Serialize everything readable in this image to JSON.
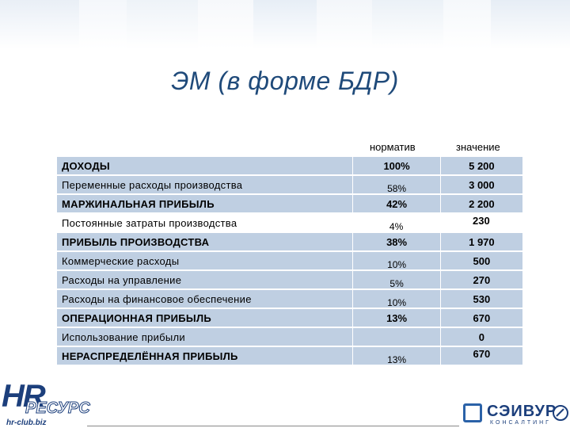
{
  "slide": {
    "title": "ЭМ (в форме БДР)",
    "col_norm": "норматив",
    "col_value": "значение"
  },
  "rows": [
    {
      "label": "ДОХОДЫ",
      "norm": "100%",
      "value": "5 200"
    },
    {
      "label": "Переменные расходы производства",
      "norm": "58%",
      "value": "3 000"
    },
    {
      "label": "МАРЖИНАЛЬНАЯ ПРИБЫЛЬ",
      "norm": "42%",
      "value": "2 200"
    },
    {
      "label": "Постоянные затраты производства",
      "norm": "4%",
      "value": "230"
    },
    {
      "label": "ПРИБЫЛЬ ПРОИЗВОДСТВА",
      "norm": "38%",
      "value": "1 970"
    },
    {
      "label": "Коммерческие расходы",
      "norm": "10%",
      "value": "500"
    },
    {
      "label": "Расходы на управление",
      "norm": "5%",
      "value": "270"
    },
    {
      "label": "Расходы на финансовое обеспечение",
      "norm": "10%",
      "value": "530"
    },
    {
      "label": "ОПЕРАЦИОННАЯ ПРИБЫЛЬ",
      "norm": "13%",
      "value": "670"
    },
    {
      "label": "Использование прибыли",
      "norm": "",
      "value": "0"
    },
    {
      "label": "НЕРАСПРЕДЕЛЁННАЯ ПРИБЫЛЬ",
      "norm": "13%",
      "value": "670"
    }
  ],
  "logos": {
    "hr_big": "HR",
    "hr_word": "РЕСУРС",
    "hr_url": "hr-club.biz",
    "seivur_name": "СЭИВУР",
    "seivur_sub": "КОНСАЛТИНГ"
  },
  "colors": {
    "title": "#1f4a7a",
    "row_shade": "#bfcfe2",
    "logo_blue": "#1c3f7c"
  }
}
